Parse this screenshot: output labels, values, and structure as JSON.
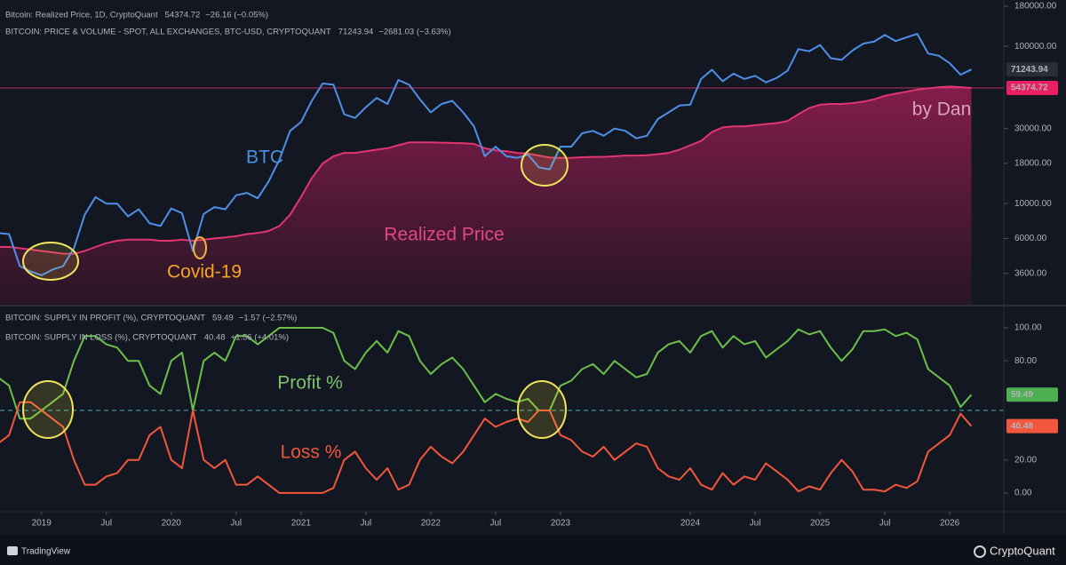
{
  "chart_data": [
    {
      "type": "line",
      "log_scale": true,
      "x": [
        "2018-09",
        "2018-10",
        "2018-11",
        "2018-12",
        "2019-01",
        "2019-02",
        "2019-03",
        "2019-04",
        "2019-05",
        "2019-06",
        "2019-07",
        "2019-08",
        "2019-09",
        "2019-10",
        "2019-11",
        "2019-12",
        "2020-01",
        "2020-02",
        "2020-03",
        "2020-04",
        "2020-05",
        "2020-06",
        "2020-07",
        "2020-08",
        "2020-09",
        "2020-10",
        "2020-11",
        "2020-12",
        "2021-01",
        "2021-02",
        "2021-03",
        "2021-04",
        "2021-05",
        "2021-06",
        "2021-07",
        "2021-08",
        "2021-09",
        "2021-10",
        "2021-11",
        "2021-12",
        "2022-01",
        "2022-02",
        "2022-03",
        "2022-04",
        "2022-05",
        "2022-06",
        "2022-07",
        "2022-08",
        "2022-09",
        "2022-10",
        "2022-11",
        "2022-12",
        "2023-01",
        "2023-02",
        "2023-03",
        "2023-04",
        "2023-05",
        "2023-06",
        "2023-07",
        "2023-08",
        "2023-09",
        "2023-10",
        "2023-11",
        "2023-12",
        "2024-01",
        "2024-02",
        "2024-03",
        "2024-04",
        "2024-05",
        "2024-06",
        "2024-07",
        "2024-08",
        "2024-09",
        "2024-10",
        "2024-11",
        "2024-12",
        "2025-01",
        "2025-02",
        "2025-03",
        "2025-04",
        "2025-05",
        "2025-06",
        "2025-07",
        "2025-08",
        "2025-09",
        "2025-10",
        "2025-11",
        "2025-12",
        "2026-01",
        "2026-02",
        "2026-03"
      ],
      "xlim": [
        "2018-09",
        "2026-06"
      ],
      "ylim": [
        2275,
        197000
      ],
      "yticks": [
        {
          "value": 3600,
          "label": "3600.00"
        },
        {
          "value": 6000,
          "label": "6000.00"
        },
        {
          "value": 10000,
          "label": "10000.00"
        },
        {
          "value": 18000,
          "label": "18000.00"
        },
        {
          "value": 30000,
          "label": "30000.00"
        },
        {
          "value": 100000,
          "label": "100000.00"
        },
        {
          "value": 180000,
          "label": "180000.00"
        }
      ],
      "series": [
        {
          "name": "Bitcoin: Realized Price, 1D, CryptoQuant",
          "color": "#e0356f",
          "area": true,
          "change": "−26.16 (−0.05%)",
          "values": [
            5300,
            5300,
            5200,
            5100,
            5000,
            4900,
            4800,
            4800,
            5000,
            5300,
            5600,
            5800,
            5900,
            5900,
            5900,
            5800,
            5800,
            5900,
            5800,
            5900,
            6000,
            6100,
            6200,
            6400,
            6500,
            6700,
            7200,
            8500,
            11000,
            14500,
            18000,
            20000,
            21000,
            21000,
            21500,
            22000,
            22500,
            23500,
            24500,
            24500,
            24500,
            24400,
            24300,
            24200,
            24000,
            22500,
            21800,
            21500,
            21000,
            20800,
            20200,
            19600,
            19500,
            19500,
            19700,
            19800,
            19800,
            20000,
            20200,
            20200,
            20300,
            20600,
            21000,
            22000,
            23500,
            25000,
            28500,
            30500,
            31000,
            31000,
            31500,
            32000,
            32500,
            33500,
            37000,
            40500,
            42500,
            43000,
            43000,
            43500,
            44500,
            46000,
            48500,
            50000,
            51500,
            53000,
            54000,
            55000,
            55500,
            55000,
            54374.72
          ]
        },
        {
          "name": "BITCOIN: PRICE & VOLUME - SPOT, ALL EXCHANGES, BTC-USD, CRYPTOQUANT",
          "color": "#4f8fe8",
          "area": false,
          "change": "−2681.03 (−3.63%)",
          "values": [
            6500,
            6400,
            4000,
            3700,
            3500,
            3800,
            4000,
            5200,
            8500,
            11000,
            10000,
            10000,
            8300,
            9200,
            7500,
            7200,
            9300,
            8700,
            5000,
            8600,
            9500,
            9200,
            11300,
            11700,
            10800,
            13800,
            19000,
            29000,
            33000,
            45000,
            58000,
            57000,
            37000,
            35000,
            41000,
            47000,
            43000,
            61000,
            57000,
            46000,
            38000,
            43000,
            45000,
            38000,
            31000,
            20000,
            23000,
            20000,
            19500,
            20500,
            17000,
            16500,
            23000,
            23000,
            28000,
            29000,
            27000,
            30000,
            29000,
            26000,
            27000,
            34500,
            38000,
            42000,
            42500,
            62000,
            71000,
            60000,
            67000,
            62000,
            65000,
            59000,
            63000,
            70000,
            96000,
            93000,
            102000,
            84000,
            82000,
            94000,
            104000,
            107000,
            118000,
            108000,
            114000,
            120000,
            90000,
            87000,
            78000,
            66000,
            71243.94
          ]
        }
      ],
      "annotations": [
        "BTC",
        "Realized Price",
        "Covid-19",
        "by Dan"
      ]
    },
    {
      "type": "line",
      "log_scale": false,
      "x": [
        "2018-09",
        "2018-10",
        "2018-11",
        "2018-12",
        "2019-01",
        "2019-02",
        "2019-03",
        "2019-04",
        "2019-05",
        "2019-06",
        "2019-07",
        "2019-08",
        "2019-09",
        "2019-10",
        "2019-11",
        "2019-12",
        "2020-01",
        "2020-02",
        "2020-03",
        "2020-04",
        "2020-05",
        "2020-06",
        "2020-07",
        "2020-08",
        "2020-09",
        "2020-10",
        "2020-11",
        "2020-12",
        "2021-01",
        "2021-02",
        "2021-03",
        "2021-04",
        "2021-05",
        "2021-06",
        "2021-07",
        "2021-08",
        "2021-09",
        "2021-10",
        "2021-11",
        "2021-12",
        "2022-01",
        "2022-02",
        "2022-03",
        "2022-04",
        "2022-05",
        "2022-06",
        "2022-07",
        "2022-08",
        "2022-09",
        "2022-10",
        "2022-11",
        "2022-12",
        "2023-01",
        "2023-02",
        "2023-03",
        "2023-04",
        "2023-05",
        "2023-06",
        "2023-07",
        "2023-08",
        "2023-09",
        "2023-10",
        "2023-11",
        "2023-12",
        "2024-01",
        "2024-02",
        "2024-03",
        "2024-04",
        "2024-05",
        "2024-06",
        "2024-07",
        "2024-08",
        "2024-09",
        "2024-10",
        "2024-11",
        "2024-12",
        "2025-01",
        "2025-02",
        "2025-03",
        "2025-04",
        "2025-05",
        "2025-06",
        "2025-07",
        "2025-08",
        "2025-09",
        "2025-10",
        "2025-11",
        "2025-12",
        "2026-01",
        "2026-02",
        "2026-03"
      ],
      "xlim": [
        "2018-09",
        "2026-06"
      ],
      "xticks": [
        {
          "value": "2019-01",
          "label": "2019"
        },
        {
          "value": "2019-07",
          "label": "Jul"
        },
        {
          "value": "2020-01",
          "label": "2020"
        },
        {
          "value": "2020-07",
          "label": "Jul"
        },
        {
          "value": "2021-01",
          "label": "2021"
        },
        {
          "value": "2021-07",
          "label": "Jul"
        },
        {
          "value": "2022-01",
          "label": "2022"
        },
        {
          "value": "2022-07",
          "label": "Jul"
        },
        {
          "value": "2023-01",
          "label": "2023"
        },
        {
          "value": "2024-01",
          "label": "2024"
        },
        {
          "value": "2024-07",
          "label": "Jul"
        },
        {
          "value": "2025-01",
          "label": "2025"
        },
        {
          "value": "2025-07",
          "label": "Jul"
        },
        {
          "value": "2026-01",
          "label": "2026"
        }
      ],
      "ylim": [
        -10.8,
        112.9
      ],
      "yticks": [
        {
          "value": 0,
          "label": "0.00"
        },
        {
          "value": 20,
          "label": "20.00"
        },
        {
          "value": 80,
          "label": "80.00"
        },
        {
          "value": 100,
          "label": "100.00"
        }
      ],
      "hline": 50,
      "series": [
        {
          "name": "BITCOIN: SUPPLY IN PROFIT (%), CRYPTOQUANT",
          "color": "#6cc04a",
          "change": "−1.57 (−2.57%)",
          "values": [
            70,
            65,
            45,
            45,
            50,
            55,
            60,
            80,
            95,
            95,
            90,
            88,
            80,
            80,
            65,
            60,
            80,
            85,
            50,
            80,
            85,
            80,
            95,
            95,
            90,
            95,
            100,
            100,
            100,
            100,
            100,
            97,
            80,
            75,
            85,
            92,
            85,
            98,
            95,
            80,
            72,
            78,
            82,
            75,
            65,
            55,
            60,
            57,
            55,
            57,
            50,
            50,
            65,
            68,
            75,
            78,
            72,
            80,
            75,
            70,
            72,
            85,
            90,
            92,
            85,
            95,
            98,
            88,
            95,
            90,
            92,
            82,
            87,
            92,
            99,
            96,
            98,
            88,
            80,
            87,
            98,
            98,
            99,
            95,
            97,
            93,
            75,
            70,
            65,
            52,
            59.49
          ]
        },
        {
          "name": "BITCOIN: SUPPLY IN LOSS (%), CRYPTOQUANT",
          "color": "#f2573c",
          "change": "+1.56 (+4.01%)",
          "values": [
            30,
            35,
            55,
            55,
            50,
            45,
            40,
            20,
            5,
            5,
            10,
            12,
            20,
            20,
            35,
            40,
            20,
            15,
            50,
            20,
            15,
            20,
            5,
            5,
            10,
            5,
            0,
            0,
            0,
            0,
            0,
            3,
            20,
            25,
            15,
            8,
            15,
            2,
            5,
            20,
            28,
            22,
            18,
            25,
            35,
            45,
            40,
            43,
            45,
            43,
            50,
            50,
            35,
            32,
            25,
            22,
            28,
            20,
            25,
            30,
            28,
            15,
            10,
            8,
            15,
            5,
            2,
            12,
            5,
            10,
            8,
            18,
            13,
            8,
            1,
            4,
            2,
            12,
            20,
            13,
            2,
            2,
            1,
            5,
            3,
            7,
            25,
            30,
            35,
            48,
            40.48
          ]
        }
      ],
      "annotations": [
        "Profit %",
        "Loss %"
      ]
    }
  ],
  "footer": {
    "left": "TradingView",
    "right": "CryptoQuant"
  }
}
